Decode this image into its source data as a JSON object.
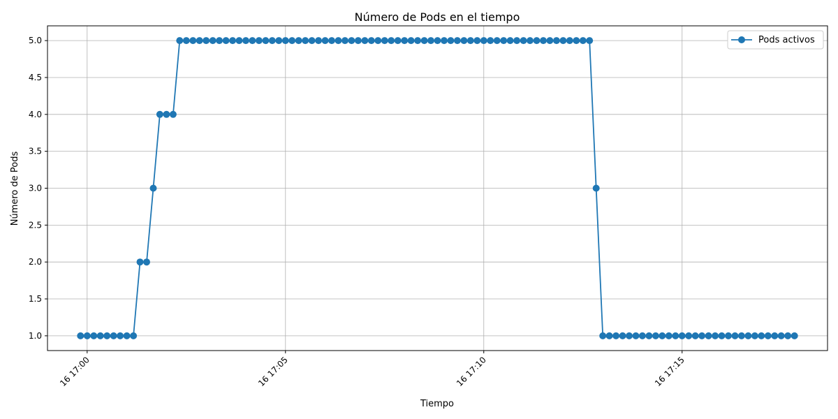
{
  "chart_data": {
    "type": "line",
    "title": "Número de Pods en el tiempo",
    "xlabel": "Tiempo",
    "ylabel": "Número de Pods",
    "x_unit": "time (16 17:00 – 17:18)",
    "xlim": [
      "16 16:59:00",
      "16 17:18:40"
    ],
    "ylim": [
      0.8,
      5.2
    ],
    "x_ticks": [
      {
        "t": "16 17:00:00",
        "label": "16 17:00"
      },
      {
        "t": "16 17:05:00",
        "label": "16 17:05"
      },
      {
        "t": "16 17:10:00",
        "label": "16 17:10"
      },
      {
        "t": "16 17:15:00",
        "label": "16 17:15"
      }
    ],
    "y_ticks": [
      1.0,
      1.5,
      2.0,
      2.5,
      3.0,
      3.5,
      4.0,
      4.5,
      5.0
    ],
    "y_tick_labels": [
      "1.0",
      "1.5",
      "2.0",
      "2.5",
      "3.0",
      "3.5",
      "4.0",
      "4.5",
      "5.0"
    ],
    "grid": true,
    "legend_position": "top-right",
    "color": "#1f77b4",
    "series": [
      {
        "name": "Pods activos",
        "x": [
          "16 16:59:50",
          "16 17:00:00",
          "16 17:00:10",
          "16 17:00:20",
          "16 17:00:30",
          "16 17:00:40",
          "16 17:00:50",
          "16 17:01:00",
          "16 17:01:10",
          "16 17:01:20",
          "16 17:01:30",
          "16 17:01:40",
          "16 17:01:50",
          "16 17:02:00",
          "16 17:02:10",
          "16 17:02:20",
          "16 17:02:30",
          "16 17:02:40",
          "16 17:02:50",
          "16 17:03:00",
          "16 17:03:10",
          "16 17:03:20",
          "16 17:03:30",
          "16 17:03:40",
          "16 17:03:50",
          "16 17:04:00",
          "16 17:04:10",
          "16 17:04:20",
          "16 17:04:30",
          "16 17:04:40",
          "16 17:04:50",
          "16 17:05:00",
          "16 17:05:10",
          "16 17:05:20",
          "16 17:05:30",
          "16 17:05:40",
          "16 17:05:50",
          "16 17:06:00",
          "16 17:06:10",
          "16 17:06:20",
          "16 17:06:30",
          "16 17:06:40",
          "16 17:06:50",
          "16 17:07:00",
          "16 17:07:10",
          "16 17:07:20",
          "16 17:07:30",
          "16 17:07:40",
          "16 17:07:50",
          "16 17:08:00",
          "16 17:08:10",
          "16 17:08:20",
          "16 17:08:30",
          "16 17:08:40",
          "16 17:08:50",
          "16 17:09:00",
          "16 17:09:10",
          "16 17:09:20",
          "16 17:09:30",
          "16 17:09:40",
          "16 17:09:50",
          "16 17:10:00",
          "16 17:10:10",
          "16 17:10:20",
          "16 17:10:30",
          "16 17:10:40",
          "16 17:10:50",
          "16 17:11:00",
          "16 17:11:10",
          "16 17:11:20",
          "16 17:11:30",
          "16 17:11:40",
          "16 17:11:50",
          "16 17:12:00",
          "16 17:12:10",
          "16 17:12:20",
          "16 17:12:30",
          "16 17:12:40",
          "16 17:12:50",
          "16 17:13:00",
          "16 17:13:10",
          "16 17:13:20",
          "16 17:13:30",
          "16 17:13:40",
          "16 17:13:50",
          "16 17:14:00",
          "16 17:14:10",
          "16 17:14:20",
          "16 17:14:30",
          "16 17:14:40",
          "16 17:14:50",
          "16 17:15:00",
          "16 17:15:10",
          "16 17:15:20",
          "16 17:15:30",
          "16 17:15:40",
          "16 17:15:50",
          "16 17:16:00",
          "16 17:16:10",
          "16 17:16:20",
          "16 17:16:30",
          "16 17:16:40",
          "16 17:16:50",
          "16 17:17:00",
          "16 17:17:10",
          "16 17:17:20",
          "16 17:17:30",
          "16 17:17:40",
          "16 17:17:50"
        ],
        "values": [
          1,
          1,
          1,
          1,
          1,
          1,
          1,
          1,
          1,
          2,
          2,
          3,
          4,
          4,
          4,
          5,
          5,
          5,
          5,
          5,
          5,
          5,
          5,
          5,
          5,
          5,
          5,
          5,
          5,
          5,
          5,
          5,
          5,
          5,
          5,
          5,
          5,
          5,
          5,
          5,
          5,
          5,
          5,
          5,
          5,
          5,
          5,
          5,
          5,
          5,
          5,
          5,
          5,
          5,
          5,
          5,
          5,
          5,
          5,
          5,
          5,
          5,
          5,
          5,
          5,
          5,
          5,
          5,
          5,
          5,
          5,
          5,
          5,
          5,
          5,
          5,
          5,
          5,
          3,
          1,
          1,
          1,
          1,
          1,
          1,
          1,
          1,
          1,
          1,
          1,
          1,
          1,
          1,
          1,
          1,
          1,
          1,
          1,
          1,
          1,
          1,
          1,
          1,
          1,
          1,
          1,
          1,
          1,
          1
        ]
      }
    ]
  }
}
